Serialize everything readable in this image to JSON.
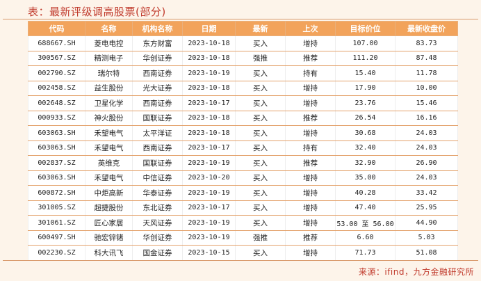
{
  "title": "表：最新评级调高股票(部分)",
  "columns": [
    "代码",
    "名称",
    "机构名称",
    "日期",
    "最新",
    "上次",
    "目标价位",
    "最新收盘价"
  ],
  "rows": [
    [
      "688667.SH",
      "菱电电控",
      "东方财富",
      "2023-10-18",
      "买入",
      "增持",
      "107.00",
      "83.73"
    ],
    [
      "300567.SZ",
      "精测电子",
      "华创证券",
      "2023-10-18",
      "强推",
      "推荐",
      "111.20",
      "87.48"
    ],
    [
      "002790.SZ",
      "瑞尔特",
      "西南证券",
      "2023-10-19",
      "买入",
      "持有",
      "15.40",
      "11.78"
    ],
    [
      "002458.SZ",
      "益生股份",
      "光大证券",
      "2023-10-18",
      "买入",
      "增持",
      "17.90",
      "10.00"
    ],
    [
      "002648.SZ",
      "卫星化学",
      "西南证券",
      "2023-10-17",
      "买入",
      "增持",
      "23.76",
      "15.46"
    ],
    [
      "000933.SZ",
      "神火股份",
      "国联证券",
      "2023-10-18",
      "买入",
      "推荐",
      "26.54",
      "16.16"
    ],
    [
      "603063.SH",
      "禾望电气",
      "太平洋证",
      "2023-10-18",
      "买入",
      "增持",
      "30.68",
      "24.03"
    ],
    [
      "603063.SH",
      "禾望电气",
      "西南证券",
      "2023-10-17",
      "买入",
      "持有",
      "32.40",
      "24.03"
    ],
    [
      "002837.SZ",
      "英维克",
      "国联证券",
      "2023-10-19",
      "买入",
      "推荐",
      "32.90",
      "26.90"
    ],
    [
      "603063.SH",
      "禾望电气",
      "中信证券",
      "2023-10-20",
      "买入",
      "增持",
      "35.00",
      "24.03"
    ],
    [
      "600872.SH",
      "中炬高新",
      "华泰证券",
      "2023-10-19",
      "买入",
      "增持",
      "40.28",
      "33.42"
    ],
    [
      "301005.SZ",
      "超捷股份",
      "东北证券",
      "2023-10-17",
      "买入",
      "增持",
      "47.40",
      "25.95"
    ],
    [
      "301061.SZ",
      "匠心家居",
      "天风证券",
      "2023-10-19",
      "买入",
      "增持",
      "53.00 至 56.00",
      "44.90"
    ],
    [
      "600497.SH",
      "驰宏锌锗",
      "华创证券",
      "2023-10-19",
      "强推",
      "推荐",
      "6.60",
      "5.03"
    ],
    [
      "002230.SZ",
      "科大讯飞",
      "国金证券",
      "2023-10-15",
      "买入",
      "增持",
      "71.73",
      "51.08"
    ]
  ],
  "source": "来源：ifind，九方金融研究所"
}
